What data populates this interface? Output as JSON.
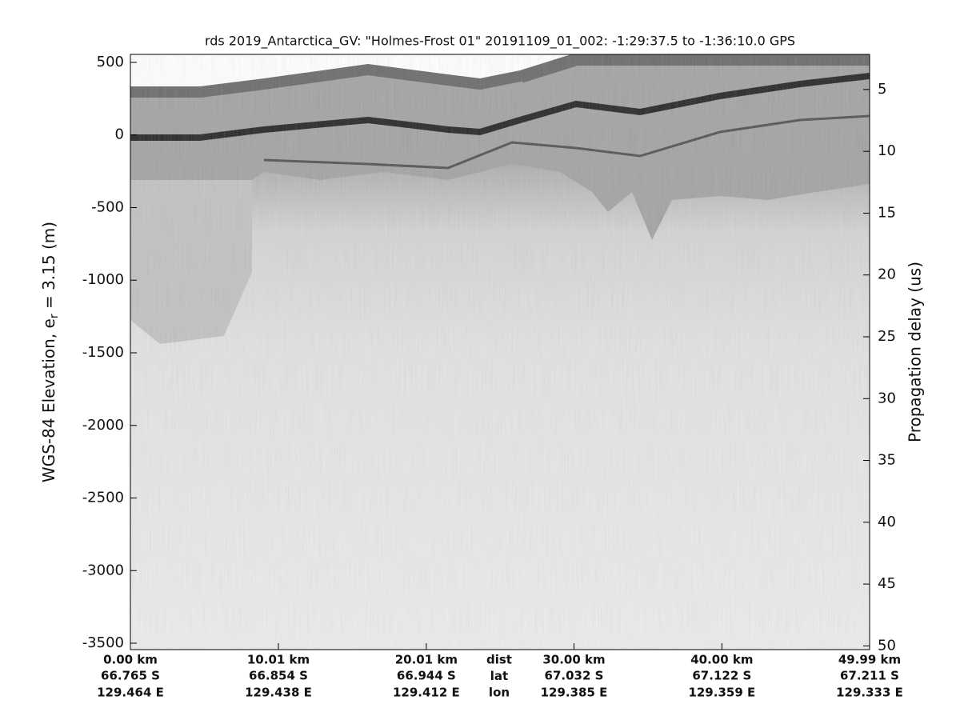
{
  "chart_data": {
    "type": "echogram",
    "title": "rds 2019_Antarctica_GV: \"Holmes-Frost 01\"  20191109_01_002: -1:29:37.5 to -1:36:10.0 GPS",
    "ylabel": [
      "WGS-84 Elevation, e",
      "r",
      " = 3.15 (m)"
    ],
    "y2label": "Propagation delay (us)",
    "ylim": [
      -3544,
      555
    ],
    "yticks": [
      500,
      0,
      -500,
      -1000,
      -1500,
      -2000,
      -2500,
      -3000,
      -3500
    ],
    "y2lim": [
      2.16,
      50.3
    ],
    "y2_reversed": true,
    "y2ticks": [
      5,
      10,
      15,
      20,
      25,
      30,
      35,
      40,
      45,
      50
    ],
    "xlim": [
      0,
      49.99
    ],
    "xticks": [
      {
        "value": 0,
        "label": "0.00 km"
      },
      {
        "value": 10.01,
        "label": "10.01 km"
      },
      {
        "value": 20.01,
        "label": "20.01 km"
      },
      {
        "value": 30,
        "label": "30.00 km"
      },
      {
        "value": 40,
        "label": "40.00 km"
      },
      {
        "value": 49.99,
        "label": "49.99 km"
      }
    ],
    "x_lat": [
      "66.765 S",
      "66.854 S",
      "66.944 S",
      "67.032 S",
      "67.122 S",
      "67.211 S"
    ],
    "x_lon": [
      "129.464 E",
      "129.438 E",
      "129.412 E",
      "129.385 E",
      "129.359 E",
      "129.333 E"
    ],
    "x_row_names": [
      "dist",
      "lat",
      "lon"
    ]
  }
}
